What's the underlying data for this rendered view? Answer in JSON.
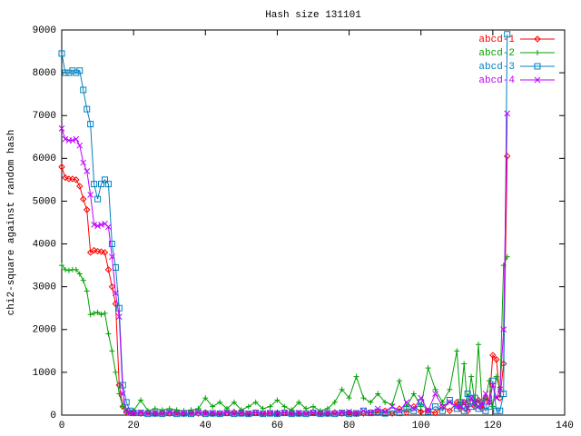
{
  "chart_data": {
    "type": "line",
    "title": "Hash size 131101",
    "y_label": "chi2-square against random hash",
    "x": [
      0,
      1,
      2,
      3,
      4,
      5,
      6,
      7,
      8,
      9,
      10,
      11,
      12,
      13,
      14,
      15,
      16,
      17,
      18,
      19,
      20,
      22,
      24,
      26,
      28,
      30,
      32,
      34,
      36,
      38,
      40,
      42,
      44,
      46,
      48,
      50,
      52,
      54,
      56,
      58,
      60,
      62,
      64,
      66,
      68,
      70,
      72,
      74,
      76,
      78,
      80,
      82,
      84,
      86,
      88,
      90,
      92,
      94,
      96,
      98,
      100,
      102,
      104,
      106,
      108,
      110,
      111,
      112,
      113,
      114,
      115,
      116,
      117,
      118,
      119,
      120,
      121,
      122,
      123,
      124
    ],
    "series": [
      {
        "name": "abcd-1",
        "color": "#ff0000",
        "marker": "diamond",
        "values": [
          5800,
          5550,
          5520,
          5520,
          5500,
          5350,
          5050,
          4800,
          3800,
          3850,
          3830,
          3820,
          3800,
          3400,
          3000,
          2600,
          700,
          200,
          80,
          50,
          50,
          40,
          60,
          30,
          50,
          40,
          70,
          30,
          50,
          40,
          60,
          30,
          40,
          50,
          70,
          40,
          30,
          60,
          40,
          50,
          30,
          60,
          40,
          30,
          50,
          70,
          40,
          30,
          60,
          40,
          50,
          30,
          40,
          60,
          50,
          100,
          40,
          150,
          60,
          200,
          80,
          100,
          50,
          200,
          100,
          300,
          150,
          300,
          100,
          400,
          200,
          350,
          150,
          400,
          300,
          1400,
          1300,
          400,
          1200,
          6050
        ]
      },
      {
        "name": "abcd-2",
        "color": "#00a000",
        "marker": "plus",
        "values": [
          3500,
          3400,
          3380,
          3400,
          3400,
          3300,
          3150,
          2900,
          2350,
          2380,
          2400,
          2350,
          2380,
          1900,
          1500,
          1000,
          500,
          200,
          100,
          80,
          100,
          350,
          100,
          150,
          120,
          150,
          120,
          100,
          120,
          150,
          400,
          200,
          300,
          150,
          300,
          120,
          200,
          300,
          150,
          200,
          350,
          200,
          120,
          300,
          150,
          200,
          100,
          150,
          300,
          600,
          400,
          900,
          400,
          300,
          500,
          300,
          250,
          800,
          200,
          500,
          200,
          1100,
          600,
          300,
          600,
          1500,
          300,
          1200,
          200,
          900,
          300,
          1650,
          300,
          400,
          800,
          200,
          900,
          600,
          3500,
          3700
        ]
      },
      {
        "name": "abcd-3",
        "color": "#0080c0",
        "marker": "square",
        "values": [
          8450,
          8000,
          8000,
          8050,
          8000,
          8050,
          7600,
          7150,
          6800,
          5400,
          5050,
          5400,
          5500,
          5400,
          4000,
          3450,
          2500,
          700,
          300,
          100,
          50,
          50,
          30,
          40,
          30,
          50,
          30,
          40,
          30,
          60,
          30,
          40,
          30,
          50,
          30,
          40,
          30,
          50,
          30,
          40,
          30,
          50,
          30,
          40,
          30,
          50,
          30,
          40,
          30,
          50,
          30,
          40,
          100,
          50,
          80,
          40,
          100,
          50,
          150,
          100,
          300,
          80,
          200,
          100,
          350,
          150,
          300,
          100,
          500,
          200,
          400,
          150,
          300,
          100,
          200,
          800,
          100,
          100,
          500,
          8900
        ]
      },
      {
        "name": "abcd-4",
        "color": "#c000ff",
        "marker": "cross",
        "values": [
          6700,
          6450,
          6420,
          6420,
          6450,
          6300,
          5900,
          5700,
          5150,
          4450,
          4420,
          4450,
          4470,
          4400,
          3700,
          2850,
          2300,
          500,
          100,
          50,
          50,
          60,
          40,
          50,
          40,
          60,
          40,
          50,
          40,
          60,
          40,
          50,
          40,
          60,
          40,
          50,
          40,
          60,
          40,
          50,
          40,
          60,
          40,
          50,
          40,
          60,
          40,
          50,
          40,
          60,
          80,
          50,
          100,
          60,
          150,
          80,
          200,
          100,
          300,
          150,
          400,
          100,
          500,
          200,
          300,
          200,
          200,
          300,
          150,
          400,
          300,
          200,
          250,
          500,
          300,
          700,
          400,
          600,
          2000,
          7050
        ]
      }
    ],
    "xlim": [
      0,
      140
    ],
    "ylim": [
      0,
      9000
    ],
    "xticks": [
      0,
      20,
      40,
      60,
      80,
      100,
      120,
      140
    ],
    "yticks": [
      0,
      1000,
      2000,
      3000,
      4000,
      5000,
      6000,
      7000,
      8000,
      9000
    ],
    "legend": "top-right"
  }
}
